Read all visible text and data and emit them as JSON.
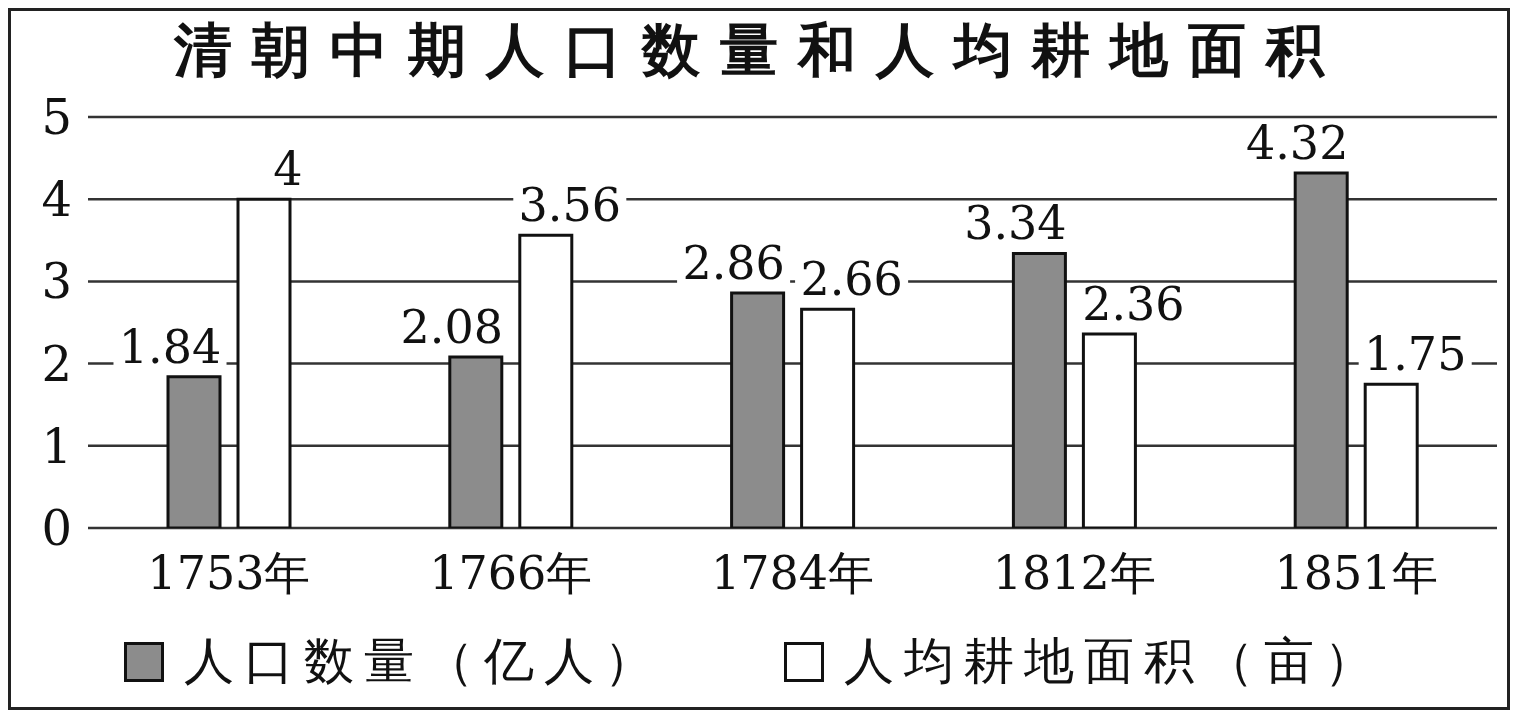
{
  "chart_data": {
    "type": "bar",
    "title": "清朝中期人口数量和人均耕地面积",
    "categories": [
      "1753年",
      "1766年",
      "1784年",
      "1812年",
      "1851年"
    ],
    "series": [
      {
        "name": "人口数量（亿人）",
        "color": "#8c8c8c",
        "values": [
          1.84,
          2.08,
          2.86,
          3.34,
          4.32
        ]
      },
      {
        "name": "人均耕地面积（亩）",
        "color": "#ffffff",
        "values": [
          4,
          3.56,
          2.66,
          2.36,
          1.75
        ]
      }
    ],
    "ylim": [
      0,
      5
    ],
    "yticks": [
      0,
      1,
      2,
      3,
      4,
      5
    ],
    "grid": "y",
    "legend": "bottom",
    "data_labels": true
  }
}
